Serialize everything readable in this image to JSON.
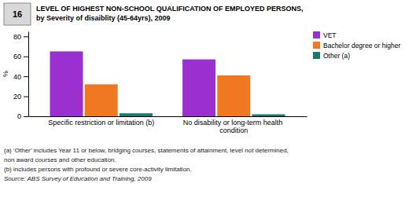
{
  "chart_data": {
    "type": "bar",
    "title": "LEVEL OF HIGHEST NON-SCHOOL QUALIFICATION OF EMPLOYED PERSONS,",
    "subtitle": "by Severity of disaiblity (45-64yrs), 2009",
    "categories": [
      "Specific restriction or limitation (b)",
      "No disability or long-term health condition"
    ],
    "series": [
      {
        "name": "VET",
        "color": "#9B30D0",
        "values": [
          65,
          57
        ]
      },
      {
        "name": "Bachelor degree or higher",
        "color": "#F07820",
        "values": [
          32,
          41
        ]
      },
      {
        "name": "Other (a)",
        "color": "#1A7A70",
        "values": [
          3,
          2
        ]
      }
    ],
    "y_label": "%",
    "ylim": [
      0,
      85
    ],
    "yticks": [
      0,
      20,
      40,
      60,
      80
    ],
    "legend": "upper right",
    "annotations": [
      "16",
      "(a) ‘Other’ includes Year 11 or below, bridging courses, statements of attainment, level not determined,",
      "non award courses and other education.",
      "(b) includes persons with profound or severe core-activity limitation.",
      "Source: ABS Survey of Education and Training, 2009"
    ]
  }
}
